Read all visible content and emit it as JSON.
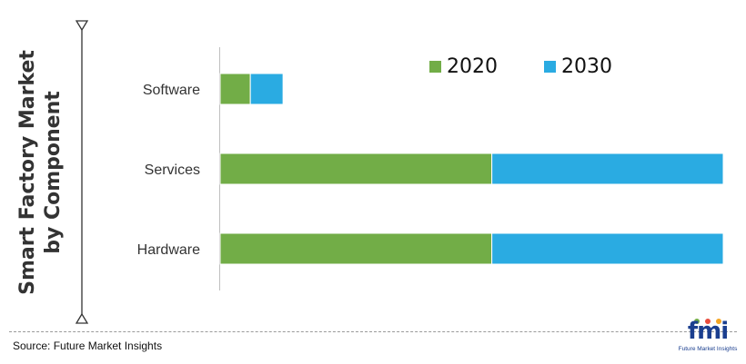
{
  "side_title": {
    "line1": "Smart Factory Market",
    "line2": "by Component"
  },
  "source": "Source: Future Market Insights",
  "logo": {
    "word": "fmi",
    "tagline": "Future Market Insights"
  },
  "chart_data": {
    "type": "bar",
    "orientation": "horizontal",
    "stacked": true,
    "categories": [
      "Software",
      "Services",
      "Hardware"
    ],
    "series": [
      {
        "name": "2020",
        "color": "#72ad47",
        "values": [
          6,
          54,
          54
        ]
      },
      {
        "name": "2030",
        "color": "#2aabe2",
        "values": [
          6.5,
          46,
          46
        ]
      }
    ],
    "xlim": [
      0,
      100
    ],
    "grid": false,
    "legend_position": "top-right",
    "axis_color": "#bfbfbf"
  }
}
